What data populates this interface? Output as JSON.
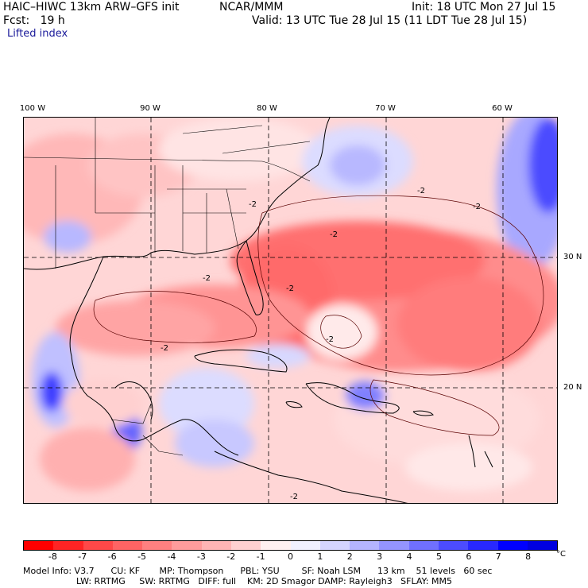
{
  "header": {
    "title": "HAIC–HIWC 13km ARW–GFS init",
    "org": "NCAR/MMM",
    "init": "Init: 18 UTC Mon 27 Jul 15",
    "fcst": "Fcst:   19 h",
    "valid": "Valid: 13 UTC Tue 28 Jul 15 (11 LDT Tue 28 Jul 15)",
    "field": "Lifted index"
  },
  "map": {
    "lon_labels": [
      "100 W",
      "90 W",
      "80 W",
      "70 W",
      "60 W"
    ],
    "lat_labels": [
      "30 N",
      "20 N"
    ],
    "contour_labels": [
      "-2",
      "-2",
      "-2",
      "-2",
      "-2",
      "-2",
      "-2",
      "-2",
      "-2"
    ]
  },
  "colorbar": {
    "ticks": [
      "-8",
      "-7",
      "-6",
      "-5",
      "-4",
      "-3",
      "-2",
      "-1",
      "0",
      "1",
      "2",
      "3",
      "4",
      "5",
      "6",
      "7",
      "8"
    ],
    "unit": "°C",
    "colors": [
      "#ff0000",
      "#ff2424",
      "#ff4848",
      "#ff6464",
      "#ff8080",
      "#ff9c9c",
      "#ffb4b4",
      "#ffd0d0",
      "#fff0f0",
      "#f0f0ff",
      "#d4d4ff",
      "#b4b4ff",
      "#9494ff",
      "#7070ff",
      "#4c4cff",
      "#2828ff",
      "#0000ff",
      "#0000e0"
    ]
  },
  "info": {
    "line1": "Model Info: V3.7      CU: KF       MP: Thompson      PBL: YSU        SF: Noah LSM      13 km    51 levels   60 sec",
    "line2": "LW: RRTMG     SW: RRTMG   DIFF: full    KM: 2D Smagor DAMP: Rayleigh3   SFLAY: MM5"
  }
}
